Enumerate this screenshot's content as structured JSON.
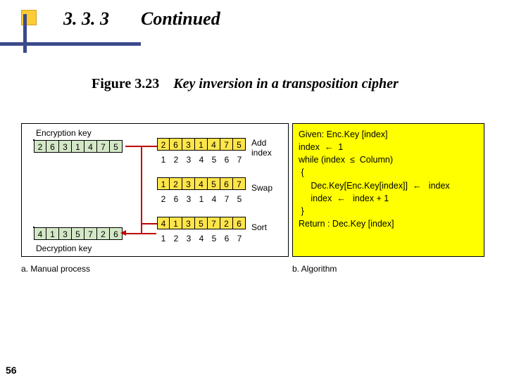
{
  "header": {
    "section": "3. 3. 3",
    "title": "Continued"
  },
  "figure": {
    "number": "Figure 3.23",
    "title": "Key inversion in a transposition cipher"
  },
  "panel_a": {
    "lbl_enc": "Encryption key",
    "lbl_dec": "Decryption key",
    "lbl_add": "Add\nindex",
    "lbl_swap": "Swap",
    "lbl_sort": "Sort",
    "enc_key": [
      "2",
      "6",
      "3",
      "1",
      "4",
      "7",
      "5"
    ],
    "mid_key": [
      "2",
      "6",
      "3",
      "1",
      "4",
      "7",
      "5"
    ],
    "idx": [
      "1",
      "2",
      "3",
      "4",
      "5",
      "6",
      "7"
    ],
    "swap_top": [
      "1",
      "2",
      "3",
      "4",
      "5",
      "6",
      "7"
    ],
    "swap_bot": [
      "2",
      "6",
      "3",
      "1",
      "4",
      "7",
      "5"
    ],
    "sorted_key": [
      "4",
      "1",
      "3",
      "5",
      "7",
      "2",
      "6"
    ],
    "sorted_idx": [
      "1",
      "2",
      "3",
      "4",
      "5",
      "6",
      "7"
    ],
    "dec_key": [
      "4",
      "1",
      "3",
      "5",
      "7",
      "2",
      "6"
    ],
    "caption": "a. Manual process"
  },
  "panel_b": {
    "lines": {
      "l1": "Given: Enc.Key [index]",
      "l2": "index  ←  1",
      "l3": "while (index  ≤  Column)",
      "l4": " {",
      "l5": "     Dec.Key[Enc.Key[index]]  ←   index",
      "l6": "     index  ←   index + 1",
      "l7": " }",
      "l8": "Return : Dec.Key [index]"
    },
    "caption": "b. Algorithm"
  },
  "pagenum": "56",
  "colors": {
    "accent_yellow": "#ffcc33",
    "line_blue": "#3b4a8c",
    "panel_yellow": "#ffff00",
    "cell_green": "#d4e8c8",
    "cell_yellow": "#ffe54a",
    "arrow_red": "#c00000"
  }
}
